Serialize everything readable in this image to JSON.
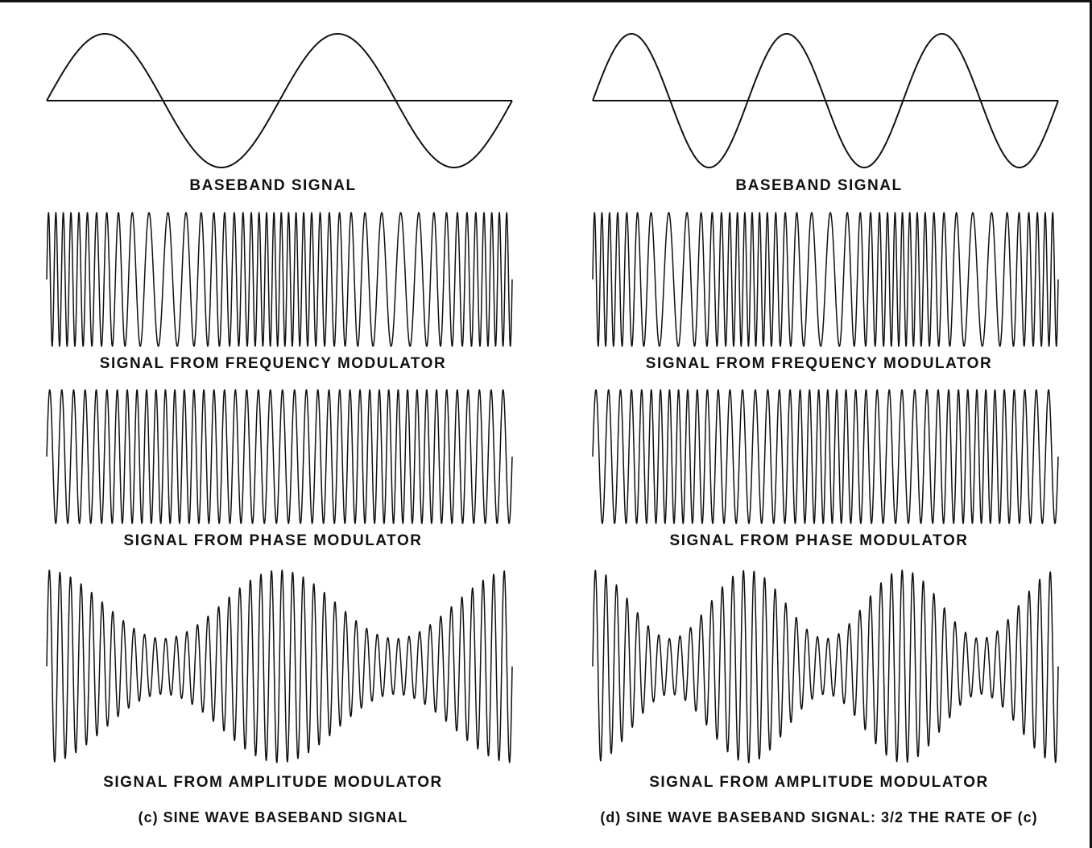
{
  "figure": {
    "panels": [
      {
        "id": "c",
        "baseband_cycles": 2,
        "carrier_cycles": 44,
        "labels": {
          "baseband": "BASEBAND SIGNAL",
          "fm": "SIGNAL FROM FREQUENCY MODULATOR",
          "pm": "SIGNAL FROM PHASE MODULATOR",
          "am": "SIGNAL FROM AMPLITUDE MODULATOR",
          "caption": "(c) SINE WAVE BASEBAND SIGNAL"
        }
      },
      {
        "id": "d",
        "baseband_cycles": 3,
        "carrier_cycles": 44,
        "labels": {
          "baseband": "BASEBAND SIGNAL",
          "fm": "SIGNAL FROM FREQUENCY MODULATOR",
          "pm": "SIGNAL FROM PHASE MODULATOR",
          "am": "SIGNAL FROM AMPLITUDE MODULATOR",
          "caption": "(d) SINE WAVE BASEBAND SIGNAL: 3/2 THE RATE OF (c)"
        }
      }
    ],
    "line_color": "#111111"
  }
}
